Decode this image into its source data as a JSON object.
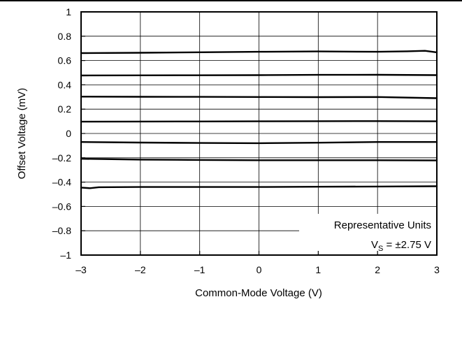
{
  "chart_data": {
    "type": "line",
    "xlabel": "Common-Mode Voltage (V)",
    "ylabel": "Offset Voltage (mV)",
    "xlim": [
      -3,
      3
    ],
    "ylim": [
      -1,
      1
    ],
    "x_ticks": [
      "–3",
      "–2",
      "–1",
      "0",
      "1",
      "2",
      "3"
    ],
    "y_ticks": [
      "1",
      "0.8",
      "0.6",
      "0.4",
      "0.2",
      "0",
      "–0.2",
      "–0.4",
      "–0.6",
      "–0.8",
      "–1"
    ],
    "grid": true,
    "annotation": {
      "line1": "Representative Units",
      "line2_prefix": "V",
      "line2_sub": "S",
      "line2_suffix": " = ±2.75 V",
      "placement": "bottom-right"
    },
    "series": [
      {
        "x": [
          -3,
          -2,
          -1,
          0,
          1,
          2,
          2.5,
          2.8,
          3
        ],
        "values": [
          0.661,
          0.664,
          0.668,
          0.672,
          0.675,
          0.672,
          0.676,
          0.68,
          0.667
        ]
      },
      {
        "x": [
          -3,
          -2,
          -1,
          0,
          1,
          2,
          3
        ],
        "values": [
          0.477,
          0.478,
          0.479,
          0.48,
          0.482,
          0.483,
          0.48
        ]
      },
      {
        "x": [
          -3,
          -2,
          -1,
          0,
          1,
          2,
          3
        ],
        "values": [
          0.303,
          0.302,
          0.301,
          0.3,
          0.299,
          0.3,
          0.29
        ]
      },
      {
        "x": [
          -3,
          -2,
          -1,
          0,
          1,
          2,
          3
        ],
        "values": [
          0.097,
          0.098,
          0.099,
          0.1,
          0.101,
          0.102,
          0.1
        ]
      },
      {
        "x": [
          -3,
          -2,
          -1,
          0,
          1,
          2,
          3
        ],
        "values": [
          -0.07,
          -0.075,
          -0.078,
          -0.08,
          -0.076,
          -0.07,
          -0.07
        ]
      },
      {
        "x": [
          -3,
          -2,
          -1,
          0,
          1,
          2,
          3
        ],
        "values": [
          -0.208,
          -0.215,
          -0.218,
          -0.22,
          -0.22,
          -0.22,
          -0.222
        ]
      },
      {
        "x": [
          -3,
          -2.85,
          -2.7,
          -2,
          -1,
          0,
          1,
          2,
          3
        ],
        "values": [
          -0.445,
          -0.45,
          -0.442,
          -0.44,
          -0.44,
          -0.44,
          -0.438,
          -0.436,
          -0.434
        ]
      }
    ]
  }
}
